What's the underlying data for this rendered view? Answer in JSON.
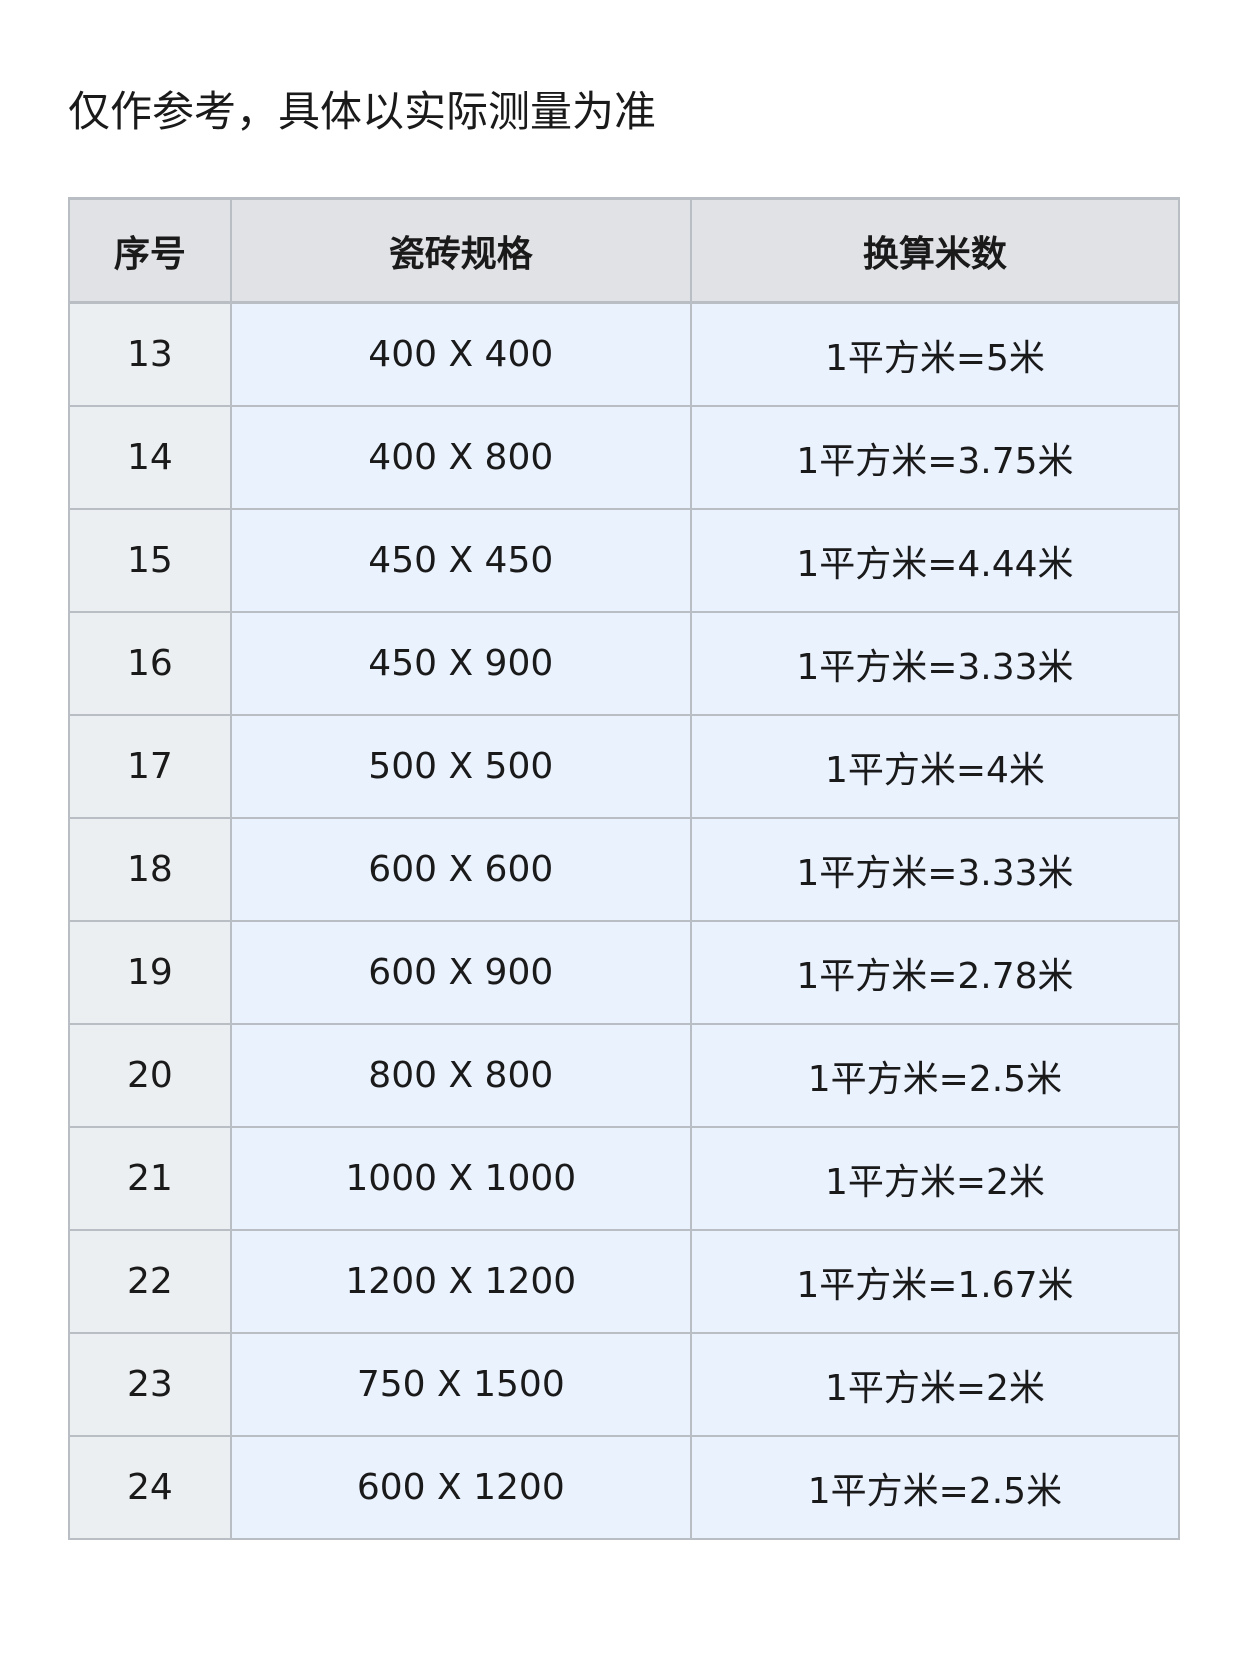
{
  "note": "仅作参考，具体以实际测量为准",
  "table": {
    "headers": [
      "序号",
      "瓷砖规格",
      "换算米数"
    ],
    "rows": [
      [
        "13",
        "400 X 400",
        "1平方米=5米"
      ],
      [
        "14",
        "400 X 800",
        "1平方米=3.75米"
      ],
      [
        "15",
        "450 X 450",
        "1平方米=4.44米"
      ],
      [
        "16",
        "450 X 900",
        "1平方米=3.33米"
      ],
      [
        "17",
        "500 X 500",
        "1平方米=4米"
      ],
      [
        "18",
        "600 X 600",
        "1平方米=3.33米"
      ],
      [
        "19",
        "600 X 900",
        "1平方米=2.78米"
      ],
      [
        "20",
        "800 X 800",
        "1平方米=2.5米"
      ],
      [
        "21",
        "1000 X 1000",
        "1平方米=2米"
      ],
      [
        "22",
        "1200 X 1200",
        "1平方米=1.67米"
      ],
      [
        "23",
        "750 X 1500",
        "1平方米=2米"
      ],
      [
        "24",
        "600 X 1200",
        "1平方米=2.5米"
      ]
    ]
  },
  "colors": {
    "header_bg": "#e1e2e6",
    "index_bg": "#eceff1",
    "cell_bg": "#eaf2fe",
    "border": "#b9bec5"
  }
}
